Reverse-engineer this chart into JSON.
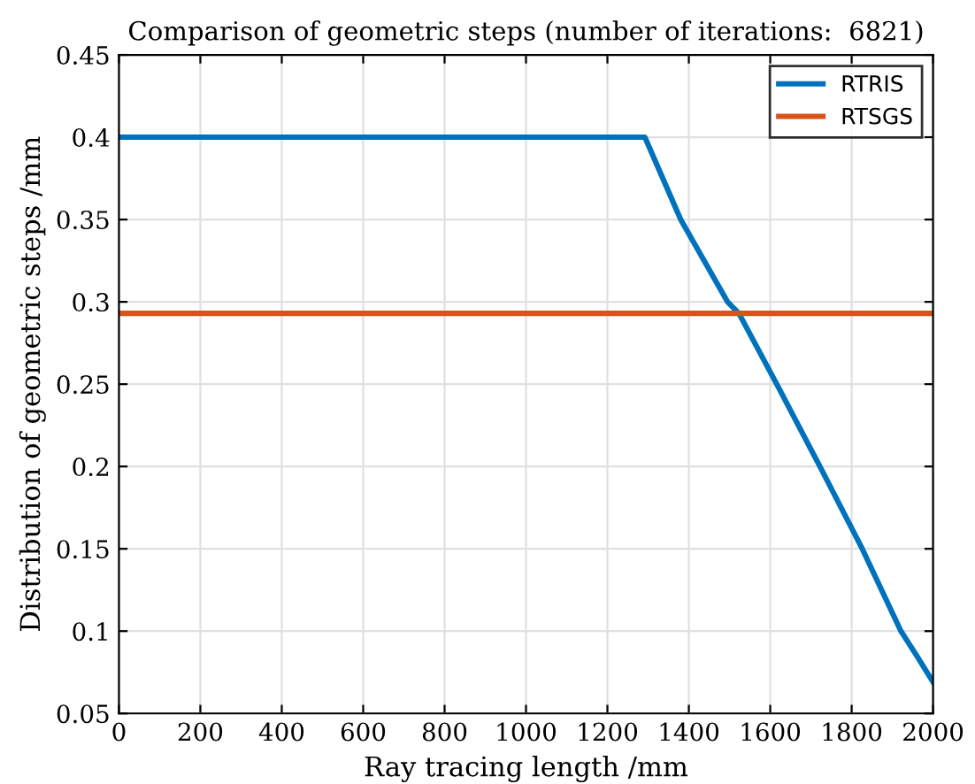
{
  "chart_data": {
    "type": "line",
    "title": "Comparison of geometric steps (number of iterations:  6821)",
    "xlabel": "Ray tracing length /mm",
    "ylabel": "Distribution of geometric steps /mm",
    "series": [
      {
        "name": "RTRIS",
        "color": "#0072bd",
        "x": [
          0,
          1292,
          1380,
          1495,
          1523,
          1616,
          1722,
          1826,
          1921,
          1960,
          2000
        ],
        "values": [
          0.4,
          0.4,
          0.35,
          0.3,
          0.293,
          0.25,
          0.2,
          0.15,
          0.1,
          0.085,
          0.069
        ]
      },
      {
        "name": "RTSGS",
        "color": "#d95319",
        "x": [
          0,
          2000
        ],
        "values": [
          0.293,
          0.293
        ]
      }
    ],
    "xlim": [
      0,
      2000
    ],
    "xticks": [
      0,
      200,
      400,
      600,
      800,
      1000,
      1200,
      1400,
      1600,
      1800,
      2000
    ],
    "ylim": [
      0.05,
      0.45
    ],
    "yticks": [
      0.05,
      0.1,
      0.15,
      0.2,
      0.25,
      0.3,
      0.35,
      0.4,
      0.45
    ],
    "grid": true,
    "legend": "top right"
  }
}
